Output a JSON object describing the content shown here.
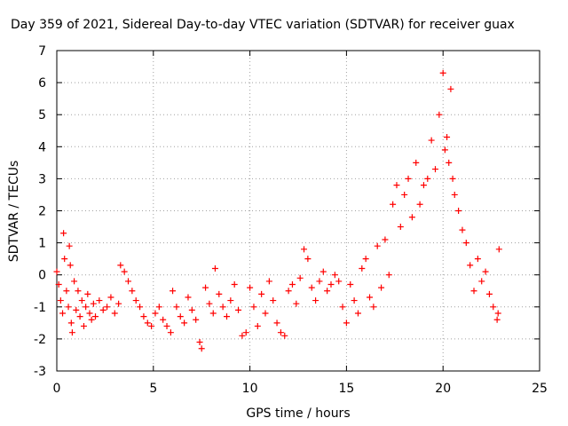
{
  "chart_data": {
    "type": "scatter",
    "title": "Day 359 of 2021, Sidereal Day-to-day VTEC variation (SDTVAR) for receiver guax",
    "xlabel": "GPS time / hours",
    "ylabel": "SDTVAR / TECUs",
    "xlim": [
      0,
      25
    ],
    "ylim": [
      -3,
      7
    ],
    "xticks": [
      "0",
      "5",
      "10",
      "15",
      "20",
      "25"
    ],
    "yticks": [
      "-3",
      "-2",
      "-1",
      "0",
      "1",
      "2",
      "3",
      "4",
      "5",
      "6",
      "7"
    ],
    "grid": true,
    "marker": "+",
    "color": "#ff0000",
    "series": [
      {
        "name": "SDTVAR",
        "points": [
          [
            0.0,
            0.1
          ],
          [
            0.1,
            -0.3
          ],
          [
            0.2,
            -0.8
          ],
          [
            0.3,
            -1.2
          ],
          [
            0.35,
            1.3
          ],
          [
            0.4,
            0.5
          ],
          [
            0.5,
            -0.5
          ],
          [
            0.6,
            -1.0
          ],
          [
            0.65,
            0.9
          ],
          [
            0.7,
            0.3
          ],
          [
            0.75,
            -1.5
          ],
          [
            0.8,
            -1.8
          ],
          [
            0.9,
            -0.2
          ],
          [
            1.0,
            -1.1
          ],
          [
            1.1,
            -0.5
          ],
          [
            1.2,
            -1.3
          ],
          [
            1.3,
            -0.8
          ],
          [
            1.4,
            -1.6
          ],
          [
            1.5,
            -1.0
          ],
          [
            1.6,
            -0.6
          ],
          [
            1.7,
            -1.2
          ],
          [
            1.8,
            -1.4
          ],
          [
            1.9,
            -0.9
          ],
          [
            2.0,
            -1.3
          ],
          [
            2.2,
            -0.8
          ],
          [
            2.4,
            -1.1
          ],
          [
            2.6,
            -1.0
          ],
          [
            2.8,
            -0.7
          ],
          [
            3.0,
            -1.2
          ],
          [
            3.2,
            -0.9
          ],
          [
            3.3,
            0.3
          ],
          [
            3.5,
            0.1
          ],
          [
            3.7,
            -0.2
          ],
          [
            3.9,
            -0.5
          ],
          [
            4.1,
            -0.8
          ],
          [
            4.3,
            -1.0
          ],
          [
            4.5,
            -1.3
          ],
          [
            4.7,
            -1.5
          ],
          [
            4.9,
            -1.6
          ],
          [
            5.1,
            -1.2
          ],
          [
            5.3,
            -1.0
          ],
          [
            5.5,
            -1.4
          ],
          [
            5.7,
            -1.6
          ],
          [
            5.9,
            -1.8
          ],
          [
            6.0,
            -0.5
          ],
          [
            6.2,
            -1.0
          ],
          [
            6.4,
            -1.3
          ],
          [
            6.6,
            -1.5
          ],
          [
            6.8,
            -0.7
          ],
          [
            7.0,
            -1.1
          ],
          [
            7.2,
            -1.4
          ],
          [
            7.4,
            -2.1
          ],
          [
            7.5,
            -2.3
          ],
          [
            7.7,
            -0.4
          ],
          [
            7.9,
            -0.9
          ],
          [
            8.1,
            -1.2
          ],
          [
            8.2,
            0.2
          ],
          [
            8.4,
            -0.6
          ],
          [
            8.6,
            -1.0
          ],
          [
            8.8,
            -1.3
          ],
          [
            9.0,
            -0.8
          ],
          [
            9.2,
            -0.3
          ],
          [
            9.4,
            -1.1
          ],
          [
            9.6,
            -1.9
          ],
          [
            9.8,
            -1.8
          ],
          [
            10.0,
            -0.4
          ],
          [
            10.2,
            -1.0
          ],
          [
            10.4,
            -1.6
          ],
          [
            10.6,
            -0.6
          ],
          [
            10.8,
            -1.2
          ],
          [
            11.0,
            -0.2
          ],
          [
            11.2,
            -0.8
          ],
          [
            11.4,
            -1.5
          ],
          [
            11.6,
            -1.8
          ],
          [
            11.8,
            -1.9
          ],
          [
            12.0,
            -0.5
          ],
          [
            12.2,
            -0.3
          ],
          [
            12.4,
            -0.9
          ],
          [
            12.6,
            -0.1
          ],
          [
            12.8,
            0.8
          ],
          [
            13.0,
            0.5
          ],
          [
            13.2,
            -0.4
          ],
          [
            13.4,
            -0.8
          ],
          [
            13.6,
            -0.2
          ],
          [
            13.8,
            0.1
          ],
          [
            14.0,
            -0.5
          ],
          [
            14.2,
            -0.3
          ],
          [
            14.4,
            0.0
          ],
          [
            14.6,
            -0.2
          ],
          [
            14.8,
            -1.0
          ],
          [
            15.0,
            -1.5
          ],
          [
            15.2,
            -0.3
          ],
          [
            15.4,
            -0.8
          ],
          [
            15.6,
            -1.2
          ],
          [
            15.8,
            0.2
          ],
          [
            16.0,
            0.5
          ],
          [
            16.2,
            -0.7
          ],
          [
            16.4,
            -1.0
          ],
          [
            16.6,
            0.9
          ],
          [
            16.8,
            -0.4
          ],
          [
            17.0,
            1.1
          ],
          [
            17.2,
            0.0
          ],
          [
            17.4,
            2.2
          ],
          [
            17.6,
            2.8
          ],
          [
            17.8,
            1.5
          ],
          [
            18.0,
            2.5
          ],
          [
            18.2,
            3.0
          ],
          [
            18.4,
            1.8
          ],
          [
            18.6,
            3.5
          ],
          [
            18.8,
            2.2
          ],
          [
            19.0,
            2.8
          ],
          [
            19.2,
            3.0
          ],
          [
            19.4,
            4.2
          ],
          [
            19.6,
            3.3
          ],
          [
            19.8,
            5.0
          ],
          [
            20.0,
            6.3
          ],
          [
            20.1,
            3.9
          ],
          [
            20.2,
            4.3
          ],
          [
            20.3,
            3.5
          ],
          [
            20.4,
            5.8
          ],
          [
            20.5,
            3.0
          ],
          [
            20.6,
            2.5
          ],
          [
            20.8,
            2.0
          ],
          [
            21.0,
            1.4
          ],
          [
            21.2,
            1.0
          ],
          [
            21.4,
            0.3
          ],
          [
            21.6,
            -0.5
          ],
          [
            21.8,
            0.5
          ],
          [
            22.0,
            -0.2
          ],
          [
            22.2,
            0.1
          ],
          [
            22.4,
            -0.6
          ],
          [
            22.6,
            -1.0
          ],
          [
            22.8,
            -1.4
          ],
          [
            22.9,
            0.8
          ],
          [
            22.85,
            -1.2
          ]
        ]
      }
    ]
  }
}
